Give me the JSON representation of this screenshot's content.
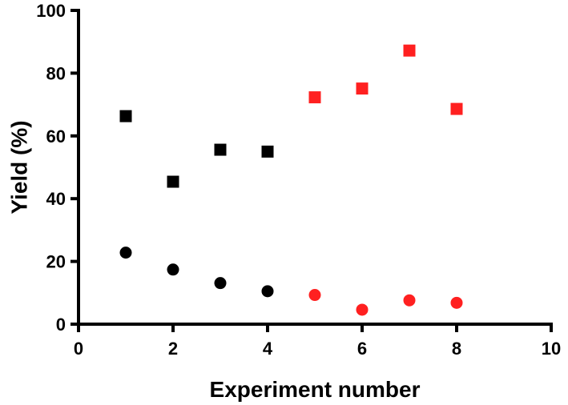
{
  "chart_data": {
    "type": "scatter",
    "title": "",
    "xlabel": "Experiment number",
    "ylabel": "Yield (%)",
    "xlim": [
      0,
      10
    ],
    "ylim": [
      0,
      100
    ],
    "x_ticks": [
      "0",
      "2",
      "4",
      "6",
      "8",
      "10"
    ],
    "y_ticks": [
      "0",
      "20",
      "40",
      "60",
      "80",
      "100"
    ],
    "grid": false,
    "legend": "none",
    "series": [
      {
        "marker": "square",
        "color": "#000000",
        "points": [
          {
            "x": 1,
            "y": 66.3
          },
          {
            "x": 2,
            "y": 45.4
          },
          {
            "x": 3,
            "y": 55.6
          },
          {
            "x": 4,
            "y": 55.0
          }
        ]
      },
      {
        "marker": "square",
        "color": "#ff2020",
        "points": [
          {
            "x": 5,
            "y": 72.3
          },
          {
            "x": 6,
            "y": 75.1
          },
          {
            "x": 7,
            "y": 87.2
          },
          {
            "x": 8,
            "y": 68.6
          }
        ]
      },
      {
        "marker": "circle",
        "color": "#000000",
        "points": [
          {
            "x": 1,
            "y": 22.8
          },
          {
            "x": 2,
            "y": 17.4
          },
          {
            "x": 3,
            "y": 13.1
          },
          {
            "x": 4,
            "y": 10.5
          }
        ]
      },
      {
        "marker": "circle",
        "color": "#ff2020",
        "points": [
          {
            "x": 5,
            "y": 9.3
          },
          {
            "x": 6,
            "y": 4.6
          },
          {
            "x": 7,
            "y": 7.6
          },
          {
            "x": 8,
            "y": 6.8
          }
        ]
      }
    ]
  }
}
